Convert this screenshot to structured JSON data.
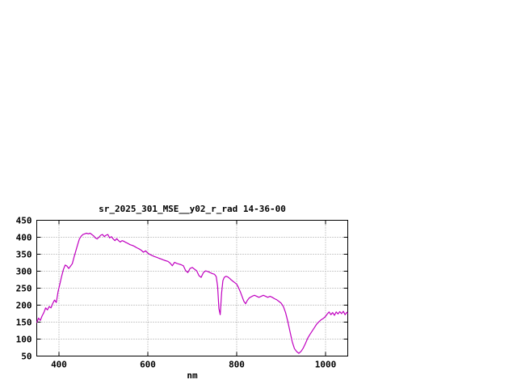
{
  "window": {
    "background": "#ffffff"
  },
  "chart_data": {
    "type": "line",
    "title": "sr_2025_301_MSE__y02_r_rad 14-36-00",
    "xlabel": "nm",
    "ylabel": "",
    "xlim": [
      350,
      1050
    ],
    "ylim": [
      50,
      450
    ],
    "x_ticks": [
      400,
      600,
      800,
      1000
    ],
    "y_ticks": [
      50,
      100,
      150,
      200,
      250,
      300,
      350,
      400,
      450
    ],
    "grid": true,
    "legend": "none",
    "line_color": "#c000c0",
    "grid_color": "#999999",
    "axis_color": "#000000",
    "points": [
      [
        350,
        148
      ],
      [
        354,
        162
      ],
      [
        358,
        155
      ],
      [
        362,
        168
      ],
      [
        366,
        178
      ],
      [
        370,
        192
      ],
      [
        374,
        186
      ],
      [
        378,
        196
      ],
      [
        382,
        192
      ],
      [
        386,
        205
      ],
      [
        390,
        215
      ],
      [
        394,
        208
      ],
      [
        398,
        240
      ],
      [
        402,
        262
      ],
      [
        406,
        285
      ],
      [
        410,
        305
      ],
      [
        414,
        318
      ],
      [
        418,
        315
      ],
      [
        422,
        308
      ],
      [
        426,
        315
      ],
      [
        430,
        322
      ],
      [
        434,
        342
      ],
      [
        438,
        360
      ],
      [
        442,
        378
      ],
      [
        446,
        395
      ],
      [
        450,
        403
      ],
      [
        454,
        408
      ],
      [
        458,
        410
      ],
      [
        462,
        412
      ],
      [
        466,
        410
      ],
      [
        470,
        412
      ],
      [
        474,
        408
      ],
      [
        478,
        404
      ],
      [
        482,
        398
      ],
      [
        486,
        395
      ],
      [
        490,
        400
      ],
      [
        494,
        406
      ],
      [
        498,
        408
      ],
      [
        502,
        402
      ],
      [
        506,
        406
      ],
      [
        510,
        408
      ],
      [
        514,
        398
      ],
      [
        518,
        402
      ],
      [
        522,
        395
      ],
      [
        526,
        390
      ],
      [
        530,
        396
      ],
      [
        534,
        390
      ],
      [
        538,
        386
      ],
      [
        542,
        390
      ],
      [
        546,
        388
      ],
      [
        550,
        385
      ],
      [
        555,
        382
      ],
      [
        560,
        378
      ],
      [
        565,
        376
      ],
      [
        570,
        373
      ],
      [
        575,
        369
      ],
      [
        580,
        366
      ],
      [
        585,
        362
      ],
      [
        590,
        356
      ],
      [
        595,
        360
      ],
      [
        600,
        353
      ],
      [
        605,
        349
      ],
      [
        610,
        346
      ],
      [
        615,
        343
      ],
      [
        620,
        341
      ],
      [
        625,
        338
      ],
      [
        630,
        336
      ],
      [
        635,
        333
      ],
      [
        640,
        331
      ],
      [
        645,
        329
      ],
      [
        650,
        324
      ],
      [
        655,
        316
      ],
      [
        660,
        326
      ],
      [
        665,
        323
      ],
      [
        670,
        321
      ],
      [
        675,
        319
      ],
      [
        680,
        316
      ],
      [
        685,
        302
      ],
      [
        690,
        296
      ],
      [
        695,
        308
      ],
      [
        700,
        311
      ],
      [
        705,
        306
      ],
      [
        710,
        301
      ],
      [
        715,
        287
      ],
      [
        720,
        282
      ],
      [
        725,
        296
      ],
      [
        730,
        301
      ],
      [
        735,
        299
      ],
      [
        740,
        296
      ],
      [
        745,
        293
      ],
      [
        750,
        291
      ],
      [
        754,
        284
      ],
      [
        757,
        255
      ],
      [
        760,
        190
      ],
      [
        763,
        172
      ],
      [
        766,
        235
      ],
      [
        769,
        272
      ],
      [
        772,
        282
      ],
      [
        776,
        285
      ],
      [
        780,
        283
      ],
      [
        784,
        279
      ],
      [
        788,
        274
      ],
      [
        792,
        270
      ],
      [
        796,
        266
      ],
      [
        800,
        262
      ],
      [
        804,
        252
      ],
      [
        808,
        240
      ],
      [
        812,
        226
      ],
      [
        816,
        212
      ],
      [
        820,
        204
      ],
      [
        824,
        214
      ],
      [
        828,
        221
      ],
      [
        832,
        224
      ],
      [
        836,
        227
      ],
      [
        840,
        229
      ],
      [
        845,
        226
      ],
      [
        850,
        223
      ],
      [
        855,
        226
      ],
      [
        860,
        229
      ],
      [
        865,
        226
      ],
      [
        870,
        223
      ],
      [
        875,
        226
      ],
      [
        880,
        223
      ],
      [
        885,
        219
      ],
      [
        890,
        216
      ],
      [
        895,
        211
      ],
      [
        900,
        206
      ],
      [
        905,
        196
      ],
      [
        910,
        178
      ],
      [
        915,
        152
      ],
      [
        920,
        122
      ],
      [
        925,
        92
      ],
      [
        930,
        72
      ],
      [
        935,
        63
      ],
      [
        940,
        58
      ],
      [
        945,
        64
      ],
      [
        950,
        74
      ],
      [
        955,
        88
      ],
      [
        960,
        103
      ],
      [
        965,
        114
      ],
      [
        970,
        124
      ],
      [
        975,
        134
      ],
      [
        980,
        144
      ],
      [
        985,
        151
      ],
      [
        990,
        157
      ],
      [
        995,
        161
      ],
      [
        1000,
        167
      ],
      [
        1004,
        174
      ],
      [
        1008,
        180
      ],
      [
        1012,
        172
      ],
      [
        1016,
        178
      ],
      [
        1020,
        170
      ],
      [
        1024,
        180
      ],
      [
        1028,
        174
      ],
      [
        1032,
        181
      ],
      [
        1036,
        175
      ],
      [
        1040,
        182
      ],
      [
        1044,
        172
      ],
      [
        1048,
        179
      ],
      [
        1050,
        176
      ]
    ]
  }
}
